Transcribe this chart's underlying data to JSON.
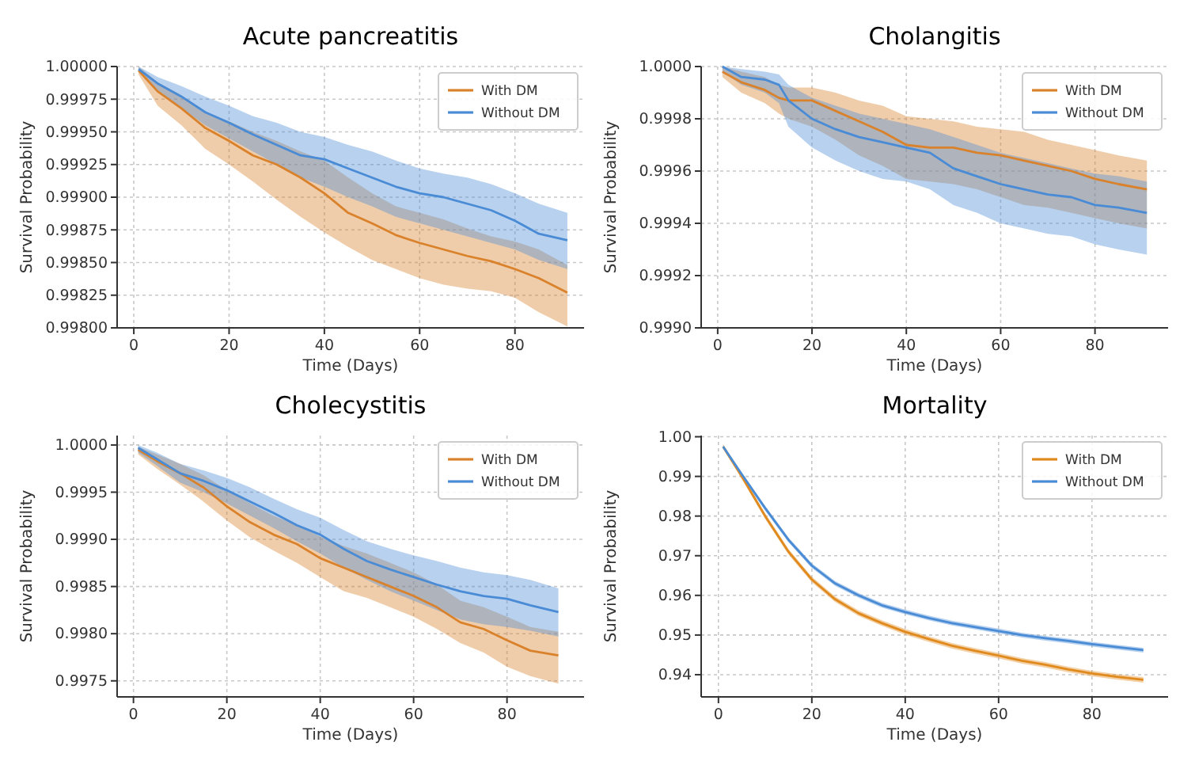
{
  "chart_data": [
    {
      "type": "line",
      "title": "Acute pancreatitis",
      "xlabel": "Time (Days)",
      "ylabel": "Survival Probability",
      "legend": "top right",
      "grid": true,
      "xlim": [
        -3.5,
        94.5
      ],
      "xticks": [
        0,
        20,
        40,
        60,
        80
      ],
      "ylim": [
        0.998,
        1.0
      ],
      "yticks": [
        {
          "value": 0.998,
          "label": "0.99800"
        },
        {
          "value": 0.99825,
          "label": "0.99825"
        },
        {
          "value": 0.9985,
          "label": "0.99850"
        },
        {
          "value": 0.99875,
          "label": "0.99875"
        },
        {
          "value": 0.999,
          "label": "0.99900"
        },
        {
          "value": 0.99925,
          "label": "0.99925"
        },
        {
          "value": 0.9995,
          "label": "0.99950"
        },
        {
          "value": 0.99975,
          "label": "0.99975"
        },
        {
          "value": 1.0,
          "label": "1.00000"
        }
      ],
      "x": [
        1,
        5,
        10,
        15,
        20,
        25,
        30,
        35,
        40,
        45,
        50,
        55,
        60,
        65,
        70,
        75,
        80,
        85,
        91
      ],
      "series": [
        {
          "name": "With DM",
          "color": "#d9822b",
          "values": [
            0.99997,
            0.99981,
            0.99968,
            0.99953,
            0.99943,
            0.99932,
            0.99925,
            0.99915,
            0.99903,
            0.99888,
            0.9988,
            0.99871,
            0.99865,
            0.9986,
            0.99855,
            0.99851,
            0.99845,
            0.99838,
            0.99827
          ],
          "lower": [
            0.99994,
            0.9997,
            0.99955,
            0.99937,
            0.99925,
            0.99912,
            0.99898,
            0.99885,
            0.99873,
            0.99862,
            0.99852,
            0.99845,
            0.99838,
            0.99833,
            0.9983,
            0.99828,
            0.99823,
            0.99812,
            0.99801
          ],
          "upper": [
            1.0,
            0.99988,
            0.99978,
            0.99965,
            0.99958,
            0.9995,
            0.99943,
            0.99935,
            0.99928,
            0.99915,
            0.99903,
            0.99893,
            0.99888,
            0.99883,
            0.99876,
            0.9987,
            0.99866,
            0.9986,
            0.99848
          ]
        },
        {
          "name": "Without DM",
          "color": "#4a8bd6",
          "values": [
            0.99998,
            0.99987,
            0.99977,
            0.99965,
            0.99957,
            0.99948,
            0.9994,
            0.99932,
            0.99929,
            0.99922,
            0.99915,
            0.99908,
            0.99903,
            0.999,
            0.99895,
            0.9989,
            0.99882,
            0.99872,
            0.99867
          ],
          "lower": [
            0.99996,
            0.99982,
            0.99968,
            0.99955,
            0.99945,
            0.99935,
            0.99925,
            0.99915,
            0.99908,
            0.999,
            0.99893,
            0.99885,
            0.9988,
            0.99875,
            0.9987,
            0.99865,
            0.9986,
            0.99852,
            0.99845
          ],
          "upper": [
            1.0,
            0.99992,
            0.99985,
            0.99977,
            0.9997,
            0.99962,
            0.99957,
            0.9995,
            0.99946,
            0.9994,
            0.99935,
            0.99928,
            0.99922,
            0.99918,
            0.99915,
            0.9991,
            0.99903,
            0.99895,
            0.99888
          ]
        }
      ]
    },
    {
      "type": "line",
      "title": "Cholangitis",
      "xlabel": "Time (Days)",
      "ylabel": "Survival Probability",
      "legend": "top right",
      "grid": true,
      "xlim": [
        -3.5,
        95.5
      ],
      "xticks": [
        0,
        20,
        40,
        60,
        80
      ],
      "ylim": [
        0.999,
        1.0
      ],
      "yticks": [
        {
          "value": 0.999,
          "label": "0.9990"
        },
        {
          "value": 0.9992,
          "label": "0.9992"
        },
        {
          "value": 0.9994,
          "label": "0.9994"
        },
        {
          "value": 0.9996,
          "label": "0.9996"
        },
        {
          "value": 0.9998,
          "label": "0.9998"
        },
        {
          "value": 1.0,
          "label": "1.0000"
        }
      ],
      "x": [
        1,
        5,
        10,
        13,
        15,
        20,
        25,
        30,
        35,
        40,
        45,
        50,
        55,
        60,
        65,
        70,
        75,
        80,
        85,
        91
      ],
      "series": [
        {
          "name": "With DM",
          "color": "#d9822b",
          "values": [
            0.99998,
            0.99994,
            0.99991,
            0.99988,
            0.99987,
            0.99987,
            0.99983,
            0.99979,
            0.99975,
            0.9997,
            0.99969,
            0.99969,
            0.99967,
            0.99966,
            0.99964,
            0.99962,
            0.9996,
            0.99957,
            0.99955,
            0.99953
          ],
          "lower": [
            0.99996,
            0.9999,
            0.99986,
            0.99982,
            0.9998,
            0.99977,
            0.99972,
            0.99966,
            0.99962,
            0.99957,
            0.99956,
            0.99955,
            0.99953,
            0.9995,
            0.99947,
            0.99946,
            0.99944,
            0.99942,
            0.9994,
            0.99938
          ],
          "upper": [
            1.0,
            0.99998,
            0.99996,
            0.99993,
            0.99992,
            0.99992,
            0.9999,
            0.99987,
            0.99985,
            0.99981,
            0.9998,
            0.99979,
            0.99977,
            0.99976,
            0.99975,
            0.99972,
            0.9997,
            0.99968,
            0.99966,
            0.99964
          ]
        },
        {
          "name": "Without DM",
          "color": "#4a8bd6",
          "values": [
            1.0,
            0.99996,
            0.99995,
            0.99993,
            0.99987,
            0.9998,
            0.99976,
            0.99973,
            0.99971,
            0.99969,
            0.99967,
            0.99961,
            0.99958,
            0.99955,
            0.99953,
            0.99951,
            0.9995,
            0.99947,
            0.99946,
            0.99944
          ],
          "lower": [
            0.99998,
            0.99993,
            0.9999,
            0.99986,
            0.99977,
            0.99969,
            0.99964,
            0.9996,
            0.99957,
            0.99956,
            0.99953,
            0.99947,
            0.99944,
            0.9994,
            0.99938,
            0.99936,
            0.99935,
            0.99932,
            0.9993,
            0.99928
          ],
          "upper": [
            1.0,
            0.99999,
            0.99998,
            0.99997,
            0.99993,
            0.99988,
            0.99985,
            0.99982,
            0.9998,
            0.99978,
            0.99976,
            0.99973,
            0.9997,
            0.99967,
            0.99965,
            0.99963,
            0.99961,
            0.99959,
            0.99958,
            0.99956
          ]
        }
      ]
    },
    {
      "type": "line",
      "title": "Cholecystitis",
      "xlabel": "Time (Days)",
      "ylabel": "Survival Probability",
      "legend": "top right",
      "grid": true,
      "xlim": [
        -3.5,
        96.5
      ],
      "xticks": [
        0,
        20,
        40,
        60,
        80
      ],
      "ylim": [
        0.99733,
        1.0001
      ],
      "yticks": [
        0.9975,
        {
          "value": 0.998,
          "label": "0.9980"
        },
        0.9985,
        {
          "value": 0.999,
          "label": "0.9990"
        },
        0.9995,
        {
          "value": 1.0,
          "label": "1.0000"
        }
      ],
      "x": [
        1,
        5,
        10,
        15,
        20,
        25,
        30,
        35,
        40,
        45,
        50,
        55,
        60,
        65,
        70,
        75,
        80,
        85,
        91
      ],
      "series": [
        {
          "name": "With DM",
          "color": "#d9822b",
          "values": [
            0.99995,
            0.99983,
            0.9997,
            0.99955,
            0.99935,
            0.99918,
            0.99905,
            0.99895,
            0.9988,
            0.9987,
            0.9986,
            0.9985,
            0.9984,
            0.99828,
            0.99812,
            0.99805,
            0.99793,
            0.99782,
            0.99777
          ],
          "lower": [
            0.9999,
            0.99975,
            0.99958,
            0.9994,
            0.9992,
            0.99902,
            0.99888,
            0.99875,
            0.9986,
            0.99845,
            0.99838,
            0.99828,
            0.99818,
            0.99805,
            0.9979,
            0.9978,
            0.99765,
            0.99755,
            0.99747
          ],
          "upper": [
            0.99998,
            0.9999,
            0.9998,
            0.99968,
            0.99952,
            0.99938,
            0.99925,
            0.99915,
            0.99903,
            0.99893,
            0.99885,
            0.99875,
            0.99865,
            0.99852,
            0.99835,
            0.99828,
            0.99818,
            0.99807,
            0.99802
          ]
        },
        {
          "name": "Without DM",
          "color": "#4a8bd6",
          "values": [
            0.99997,
            0.99985,
            0.9997,
            0.99962,
            0.99952,
            0.9994,
            0.99928,
            0.99915,
            0.99905,
            0.9989,
            0.99877,
            0.99868,
            0.9986,
            0.99852,
            0.99845,
            0.9984,
            0.99837,
            0.9983,
            0.99823
          ],
          "lower": [
            0.99992,
            0.99978,
            0.9996,
            0.9995,
            0.99938,
            0.99925,
            0.99912,
            0.99898,
            0.99885,
            0.9987,
            0.99857,
            0.99845,
            0.99835,
            0.99825,
            0.99815,
            0.9981,
            0.99807,
            0.99803,
            0.99797
          ],
          "upper": [
            1.0,
            0.99992,
            0.9998,
            0.99973,
            0.99965,
            0.99955,
            0.99943,
            0.99932,
            0.99923,
            0.9991,
            0.99898,
            0.9989,
            0.99883,
            0.99877,
            0.9987,
            0.99865,
            0.99862,
            0.99857,
            0.99848
          ]
        }
      ]
    },
    {
      "type": "line",
      "title": "Mortality",
      "xlabel": "Time (Days)",
      "ylabel": "Survival Probability",
      "legend": "top right",
      "grid": true,
      "xlim": [
        -3.7,
        96.3
      ],
      "xticks": [
        0,
        20,
        40,
        60,
        80
      ],
      "ylim": [
        0.9344,
        1.0003
      ],
      "yticks": [
        0.94,
        0.95,
        0.96,
        0.97,
        0.98,
        0.99,
        {
          "value": 1.0,
          "label": "1.00"
        }
      ],
      "x": [
        1,
        5,
        10,
        15,
        20,
        25,
        30,
        35,
        40,
        45,
        50,
        55,
        60,
        65,
        70,
        75,
        80,
        85,
        91
      ],
      "series": [
        {
          "name": "With DM",
          "color": "#e08a1e",
          "values": [
            0.9975,
            0.99,
            0.98,
            0.971,
            0.964,
            0.959,
            0.9555,
            0.953,
            0.9508,
            0.949,
            0.9473,
            0.946,
            0.9448,
            0.9435,
            0.9425,
            0.9413,
            0.9403,
            0.9395,
            0.9387
          ],
          "lower": [
            0.9969,
            0.9893,
            0.9793,
            0.9703,
            0.9633,
            0.9583,
            0.9548,
            0.9523,
            0.9501,
            0.9483,
            0.9466,
            0.9453,
            0.9441,
            0.9428,
            0.9418,
            0.9406,
            0.9396,
            0.9388,
            0.938
          ],
          "upper": [
            0.9981,
            0.9907,
            0.9807,
            0.9717,
            0.9647,
            0.9597,
            0.9562,
            0.9537,
            0.9515,
            0.9497,
            0.948,
            0.9467,
            0.9455,
            0.9442,
            0.9432,
            0.942,
            0.941,
            0.9402,
            0.9394
          ]
        },
        {
          "name": "Without DM",
          "color": "#4a8bd6",
          "values": [
            0.9975,
            0.9905,
            0.982,
            0.974,
            0.9675,
            0.963,
            0.96,
            0.9575,
            0.9558,
            0.9543,
            0.953,
            0.952,
            0.951,
            0.95,
            0.9492,
            0.9485,
            0.9477,
            0.947,
            0.9462
          ],
          "lower": [
            0.997,
            0.99,
            0.9814,
            0.9734,
            0.9669,
            0.9624,
            0.9594,
            0.9569,
            0.9552,
            0.9537,
            0.9524,
            0.9514,
            0.9504,
            0.9494,
            0.9486,
            0.9479,
            0.9471,
            0.9464,
            0.9456
          ],
          "upper": [
            0.998,
            0.991,
            0.9826,
            0.9746,
            0.9681,
            0.9636,
            0.9606,
            0.9581,
            0.9564,
            0.9549,
            0.9536,
            0.9526,
            0.9516,
            0.9506,
            0.9498,
            0.9491,
            0.9483,
            0.9476,
            0.9468
          ]
        }
      ]
    }
  ]
}
